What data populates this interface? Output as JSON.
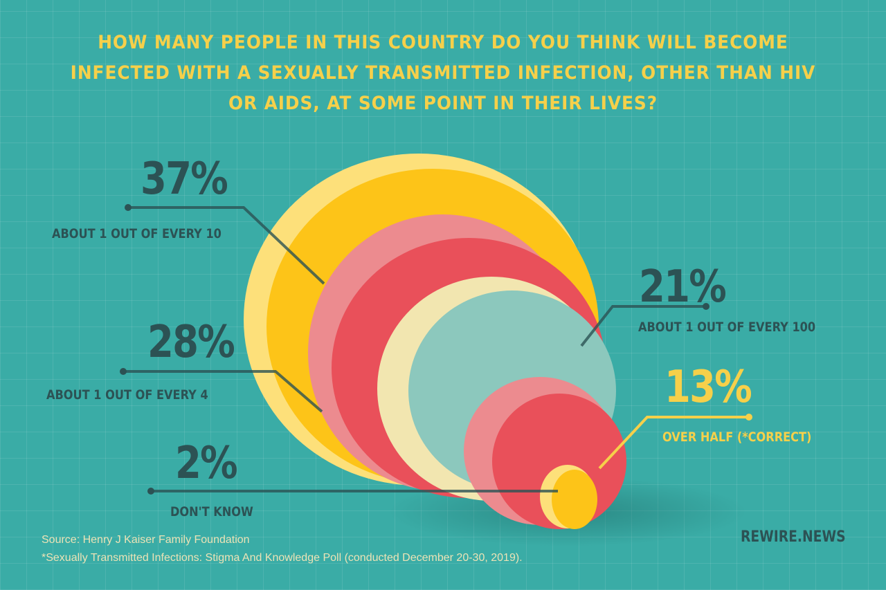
{
  "title": "HOW MANY PEOPLE IN THIS COUNTRY DO YOU THINK WILL BECOME INFECTED WITH A SEXUALLY TRANSMITTED INFECTION, OTHER THAN HIV OR AIDS, AT SOME POINT IN THEIR LIVES?",
  "chart_data": {
    "type": "pie",
    "title": "HOW MANY PEOPLE IN THIS COUNTRY DO YOU THINK WILL BECOME INFECTED WITH A SEXUALLY TRANSMITTED INFECTION, OTHER THAN HIV OR AIDS, AT SOME POINT IN THEIR LIVES?",
    "categories": [
      "About 1 out of every 10",
      "About 1 out of every 4",
      "About 1 out of every 100",
      "Over half (*correct)",
      "Don't know"
    ],
    "values": [
      37,
      28,
      21,
      13,
      2
    ],
    "slices": [
      {
        "value": 37,
        "value_label": "37%",
        "label": "ABOUT 1 OUT OF EVERY 10",
        "color": "#fdc418",
        "back_color": "#fde07a"
      },
      {
        "value": 28,
        "value_label": "28%",
        "label": "ABOUT 1 OUT OF EVERY 4",
        "color": "#e9505a",
        "back_color": "#ec8b8f"
      },
      {
        "value": 21,
        "value_label": "21%",
        "label": "ABOUT 1 OUT OF EVERY 100",
        "color": "#8cc8bd",
        "back_color": "#f2e6b0"
      },
      {
        "value": 13,
        "value_label": "13%",
        "label": "OVER HALF (*CORRECT)",
        "color": "#e9505a",
        "back_color": "#ec8b8f"
      },
      {
        "value": 2,
        "value_label": "2%",
        "label": "DON'T KNOW",
        "color": "#fdc418",
        "back_color": "#fde07a"
      }
    ],
    "highlight_color": "#f6d04a",
    "text_color": "#2c5254"
  },
  "footer": {
    "source": "Source: Henry J Kaiser Family Foundation",
    "note": "*Sexually Transmitted Infections: Stigma And Knowledge Poll (conducted December 20-30, 2019).",
    "brand": "REWIRE.NEWS"
  }
}
